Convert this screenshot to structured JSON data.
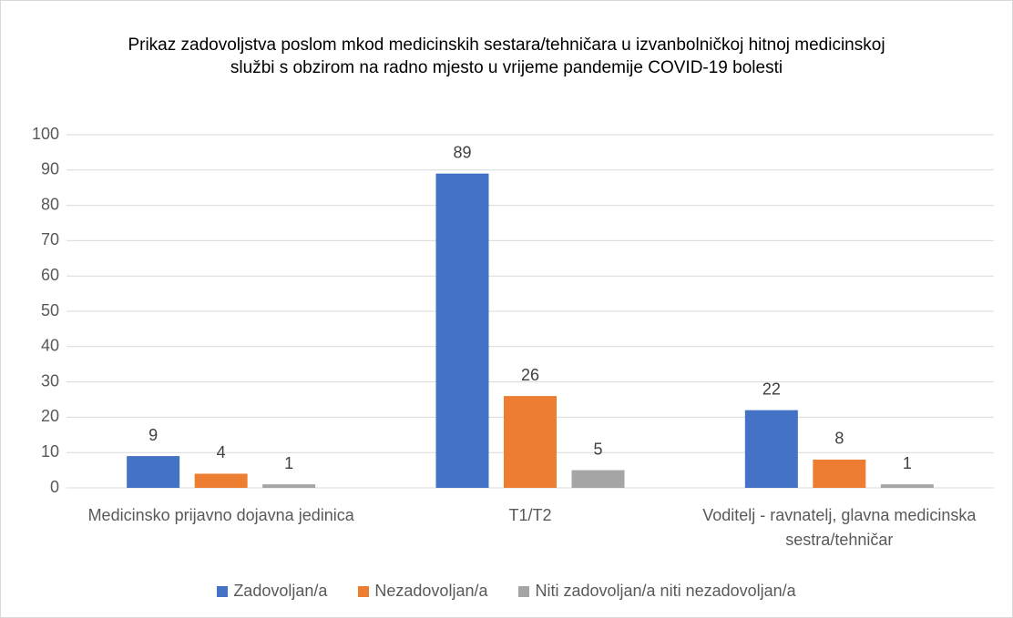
{
  "chart_data": {
    "type": "bar",
    "title": "Prikaz zadovoljstva poslom mkod medicinskih sestara/tehničara u izvanbolničkoj hitnoj medicinskoj službi s obzirom na radno mjesto u vrijeme pandemije COVID-19 bolesti",
    "categories": [
      "Medicinsko prijavno dojavna jedinica",
      "T1/T2",
      "Voditelj - ravnatelj, glavna medicinska sestra/tehničar"
    ],
    "series": [
      {
        "name": "Zadovoljan/a",
        "color": "#4472c4",
        "values": [
          9,
          89,
          22
        ]
      },
      {
        "name": "Nezadovoljan/a",
        "color": "#ed7d31",
        "values": [
          4,
          26,
          8
        ]
      },
      {
        "name": "Niti zadovoljan/a niti nezadovoljan/a",
        "color": "#a5a5a5",
        "values": [
          1,
          5,
          1
        ]
      }
    ],
    "ylim": [
      0,
      100
    ],
    "yticks": [
      0,
      10,
      20,
      30,
      40,
      50,
      60,
      70,
      80,
      90,
      100
    ],
    "grid": true,
    "legend": "bottom"
  }
}
